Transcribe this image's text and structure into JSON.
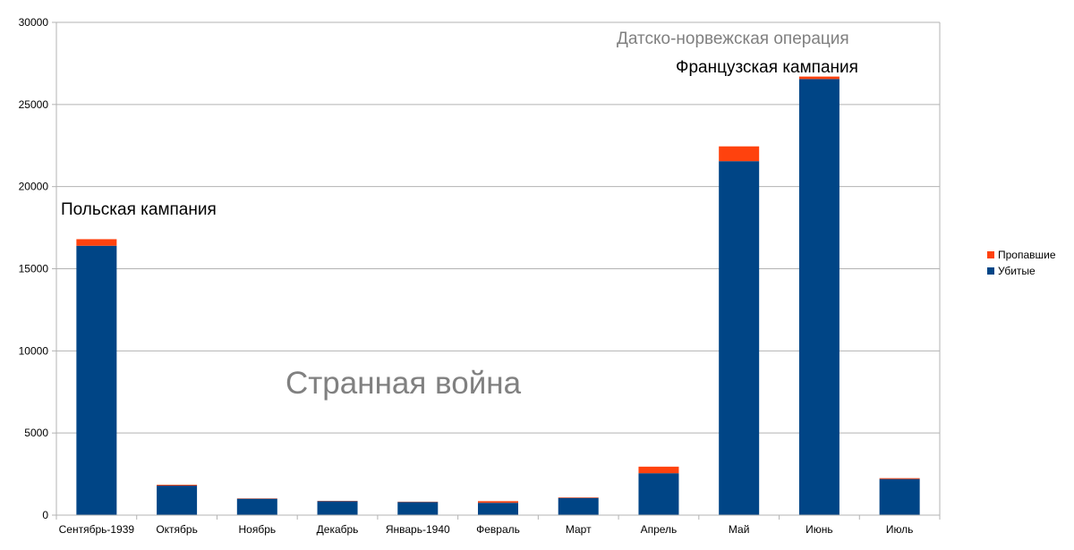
{
  "chart_data": {
    "type": "bar",
    "stacked": true,
    "categories": [
      "Сентябрь-1939",
      "Октябрь",
      "Ноябрь",
      "Декабрь",
      "Январь-1940",
      "Февраль",
      "Март",
      "Апрель",
      "Май",
      "Июнь",
      "Июль"
    ],
    "series": [
      {
        "name": "Убитые",
        "color": "#004586",
        "values": [
          16400,
          1800,
          1000,
          850,
          800,
          750,
          1050,
          2550,
          21550,
          26550,
          2200
        ]
      },
      {
        "name": "Пропавшие",
        "color": "#ff420e",
        "values": [
          400,
          50,
          20,
          20,
          20,
          100,
          30,
          400,
          900,
          150,
          50
        ]
      }
    ],
    "ylim": [
      0,
      30000
    ],
    "yticks": [
      0,
      5000,
      10000,
      15000,
      20000,
      25000,
      30000
    ],
    "grid": true,
    "legend_position": "right",
    "annotations": [
      {
        "text": "Польская кампания",
        "color": "#000000"
      },
      {
        "text": "Странная война",
        "color": "#808080"
      },
      {
        "text": "Датско-норвежская операция",
        "color": "#808080"
      },
      {
        "text": "Французская кампания",
        "color": "#000000"
      }
    ]
  }
}
